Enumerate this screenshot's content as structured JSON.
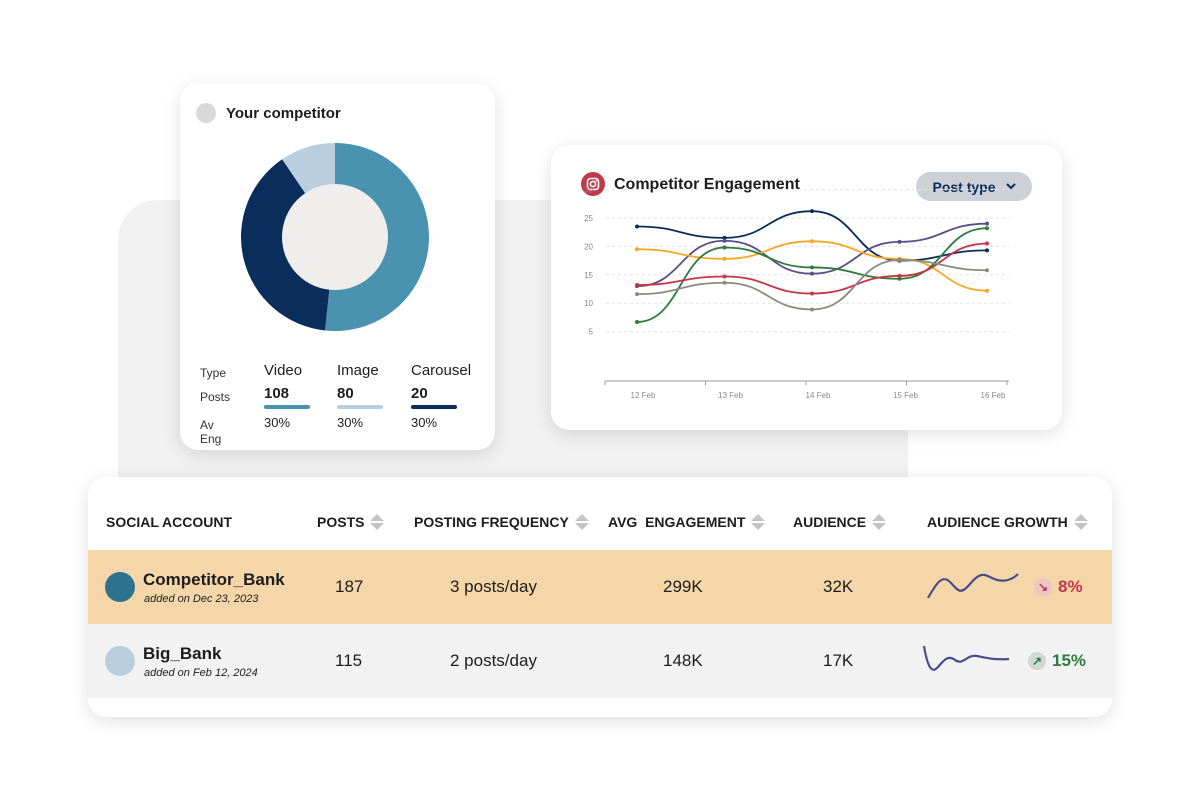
{
  "donut_card": {
    "title": "Your competitor",
    "row_labels": {
      "type": "Type",
      "posts": "Posts",
      "av_eng": "Av Eng"
    },
    "types": [
      {
        "name": "Video",
        "posts": "108",
        "av_eng": "30%",
        "color": "#4a93b0",
        "share": 0.517
      },
      {
        "name": "Image",
        "posts": "80",
        "av_eng": "30%",
        "color": "#b9cfe0",
        "share": 0.095
      },
      {
        "name": "Carousel",
        "posts": "20",
        "av_eng": "30%",
        "color": "#0b2d5b",
        "share": 0.388
      }
    ]
  },
  "chart_card": {
    "title": "Competitor Engagement",
    "icon": "instagram-icon",
    "dropdown": "Post type"
  },
  "chart_data": {
    "type": "line",
    "categories": [
      "12 Feb",
      "13 Feb",
      "14 Feb",
      "15 Feb",
      "16 Feb"
    ],
    "ylim": [
      0,
      30
    ],
    "yticks": [
      5,
      10,
      15,
      20,
      25,
      30
    ],
    "grid": true,
    "series": [
      {
        "color": "#0b2d5b",
        "values": [
          23.5,
          21.5,
          26.2,
          17.5,
          19.3
        ]
      },
      {
        "color": "#5a4f8a",
        "values": [
          13,
          21,
          15.2,
          20.8,
          24
        ]
      },
      {
        "color": "#f5a623",
        "values": [
          19.5,
          17.8,
          20.9,
          17.8,
          12.2
        ]
      },
      {
        "color": "#2e7d3e",
        "values": [
          6.7,
          19.8,
          16.3,
          14.3,
          23.2
        ]
      },
      {
        "color": "#c8364a",
        "values": [
          13.2,
          14.7,
          11.7,
          14.8,
          20.5
        ]
      },
      {
        "color": "#8a8a86",
        "values": [
          11.6,
          13.6,
          8.9,
          17.6,
          15.8
        ]
      }
    ]
  },
  "table": {
    "headers": [
      "SOCIAL ACCOUNT",
      "POSTS",
      "POSTING FREQUENCY",
      "AVG  ENGAGEMENT",
      "AUDIENCE",
      "AUDIENCE GROWTH"
    ],
    "rows": [
      {
        "name": "Competitor_Bank",
        "added": "added on Dec 23, 2023",
        "posts": "187",
        "frequency": "3 posts/day",
        "engagement": "299K",
        "audience": "32K",
        "growth": "8%",
        "trend": "down",
        "dot": "#2d7390",
        "bg": "#f5d6a8"
      },
      {
        "name": "Big_Bank",
        "added": "added on Feb 12, 2024",
        "posts": "115",
        "frequency": "2 posts/day",
        "engagement": "148K",
        "audience": "17K",
        "growth": "15%",
        "trend": "up",
        "dot": "#b9cfe0",
        "bg": "#f2f2f2"
      }
    ]
  }
}
